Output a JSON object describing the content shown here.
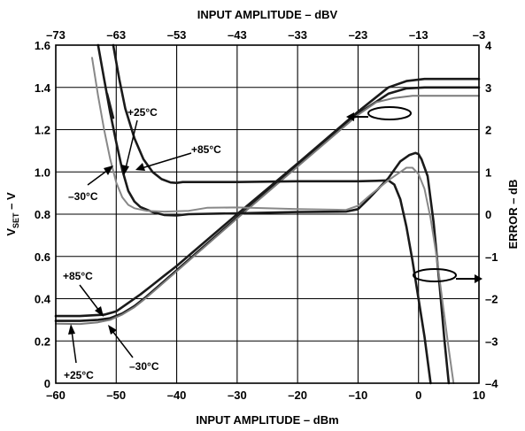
{
  "chart_data": {
    "type": "line",
    "axes": {
      "x_bottom": {
        "label": "INPUT AMPLITUDE – dBm",
        "range": [
          -60,
          10
        ],
        "ticks": [
          -60,
          -50,
          -40,
          -30,
          -20,
          -10,
          0,
          10
        ]
      },
      "x_top": {
        "label": "INPUT AMPLITUDE – dBV",
        "range": [
          -73,
          -3
        ],
        "ticks": [
          -73,
          -63,
          -53,
          -43,
          -33,
          -23,
          -13,
          -3
        ]
      },
      "y_left": {
        "label_main": "V",
        "label_sub": "SET",
        "label_tail": " – V",
        "range": [
          0,
          1.6
        ],
        "ticks": [
          0,
          0.2,
          0.4,
          0.6,
          0.8,
          1.0,
          1.2,
          1.4,
          1.6
        ],
        "tick_labels": [
          "0",
          "0.2",
          "0.4",
          "0.6",
          "0.8",
          "1.0",
          "1.2",
          "1.4",
          "1.6"
        ]
      },
      "y_right": {
        "label": "ERROR – dB",
        "range": [
          -4,
          4
        ],
        "ticks": [
          -4,
          -3,
          -2,
          -1,
          0,
          1,
          2,
          3,
          4
        ],
        "tick_labels": [
          "–4",
          "–3",
          "–2",
          "–1",
          "0",
          "1",
          "2",
          "3",
          "4"
        ]
      }
    },
    "grid": true,
    "series": [
      {
        "axis": "left",
        "color": "#1a1a1a",
        "width": 2.6,
        "points": [
          [
            -60,
            0.318
          ],
          [
            -56,
            0.318
          ],
          [
            -52,
            0.324
          ],
          [
            -50,
            0.34
          ],
          [
            -48,
            0.38
          ],
          [
            -46,
            0.42
          ],
          [
            -44,
            0.465
          ],
          [
            -42,
            0.51
          ],
          [
            -40,
            0.555
          ],
          [
            -30,
            0.8
          ],
          [
            -20,
            1.04
          ],
          [
            -10,
            1.285
          ],
          [
            -5,
            1.4
          ],
          [
            -2,
            1.43
          ],
          [
            1,
            1.44
          ],
          [
            5,
            1.44
          ],
          [
            10,
            1.44
          ]
        ]
      },
      {
        "axis": "left",
        "color": "#1a1a1a",
        "width": 2.6,
        "points": [
          [
            -60,
            0.295
          ],
          [
            -56,
            0.295
          ],
          [
            -53,
            0.3
          ],
          [
            -51,
            0.308
          ],
          [
            -49,
            0.33
          ],
          [
            -47,
            0.365
          ],
          [
            -45,
            0.41
          ],
          [
            -43,
            0.46
          ],
          [
            -40,
            0.535
          ],
          [
            -30,
            0.785
          ],
          [
            -20,
            1.03
          ],
          [
            -10,
            1.275
          ],
          [
            -5,
            1.37
          ],
          [
            -2,
            1.395
          ],
          [
            1,
            1.4
          ],
          [
            5,
            1.4
          ],
          [
            10,
            1.4
          ]
        ]
      },
      {
        "axis": "left",
        "color": "#7a7a7a",
        "width": 2.0,
        "points": [
          [
            -60,
            0.282
          ],
          [
            -56,
            0.28
          ],
          [
            -53,
            0.288
          ],
          [
            -51,
            0.3
          ],
          [
            -49,
            0.325
          ],
          [
            -47,
            0.36
          ],
          [
            -45,
            0.405
          ],
          [
            -43,
            0.455
          ],
          [
            -40,
            0.53
          ],
          [
            -30,
            0.78
          ],
          [
            -20,
            1.025
          ],
          [
            -10,
            1.27
          ],
          [
            -7,
            1.33
          ],
          [
            -4,
            1.35
          ],
          [
            -1,
            1.36
          ],
          [
            5,
            1.36
          ],
          [
            10,
            1.36
          ]
        ]
      },
      {
        "axis": "right",
        "color": "#1a1a1a",
        "width": 2.6,
        "points": [
          [
            -50.5,
            4.0
          ],
          [
            -49.5,
            3.2
          ],
          [
            -48.5,
            2.5
          ],
          [
            -47,
            1.8
          ],
          [
            -45.5,
            1.3
          ],
          [
            -44,
            1.0
          ],
          [
            -42.5,
            0.83
          ],
          [
            -41,
            0.75
          ],
          [
            -40,
            0.74
          ],
          [
            -39,
            0.76
          ],
          [
            -30,
            0.76
          ],
          [
            -20,
            0.78
          ],
          [
            -10,
            0.78
          ],
          [
            -7,
            0.79
          ],
          [
            -5,
            0.8
          ],
          [
            -4,
            0.7
          ],
          [
            -3,
            0.35
          ],
          [
            -2,
            -0.3
          ],
          [
            -1,
            -1.1
          ],
          [
            0,
            -2.0
          ],
          [
            1,
            -2.9
          ],
          [
            2,
            -4.0
          ]
        ]
      },
      {
        "axis": "right",
        "color": "#1a1a1a",
        "width": 2.6,
        "points": [
          [
            -53,
            4.0
          ],
          [
            -52,
            3.2
          ],
          [
            -51,
            2.4
          ],
          [
            -50,
            1.7
          ],
          [
            -49,
            1.05
          ],
          [
            -48,
            0.55
          ],
          [
            -47,
            0.3
          ],
          [
            -46,
            0.17
          ],
          [
            -44,
            0.05
          ],
          [
            -42,
            -0.02
          ],
          [
            -40,
            -0.03
          ],
          [
            -38,
            0.0
          ],
          [
            -30,
            0.02
          ],
          [
            -20,
            0.05
          ],
          [
            -12,
            0.06
          ],
          [
            -10,
            0.12
          ],
          [
            -8,
            0.4
          ],
          [
            -5,
            0.85
          ],
          [
            -3,
            1.25
          ],
          [
            -1.5,
            1.4
          ],
          [
            -0.5,
            1.45
          ],
          [
            0,
            1.42
          ],
          [
            0.5,
            1.3
          ],
          [
            1.5,
            0.9
          ],
          [
            2.5,
            -0.2
          ],
          [
            3.5,
            -1.7
          ],
          [
            4.3,
            -3.0
          ],
          [
            5,
            -4.0
          ]
        ]
      },
      {
        "axis": "right",
        "color": "#888888",
        "width": 2.0,
        "points": [
          [
            -54,
            3.7
          ],
          [
            -53,
            2.8
          ],
          [
            -52,
            2.0
          ],
          [
            -51,
            1.3
          ],
          [
            -50,
            0.75
          ],
          [
            -49,
            0.4
          ],
          [
            -48,
            0.22
          ],
          [
            -47,
            0.14
          ],
          [
            -45,
            0.08
          ],
          [
            -42,
            0.06
          ],
          [
            -38,
            0.08
          ],
          [
            -35,
            0.15
          ],
          [
            -30,
            0.16
          ],
          [
            -20,
            0.12
          ],
          [
            -12,
            0.1
          ],
          [
            -10,
            0.2
          ],
          [
            -8,
            0.45
          ],
          [
            -5,
            0.8
          ],
          [
            -3,
            1.0
          ],
          [
            -2,
            1.1
          ],
          [
            -1,
            1.1
          ],
          [
            0,
            0.95
          ],
          [
            1,
            0.6
          ],
          [
            2,
            -0.1
          ],
          [
            3,
            -1.0
          ],
          [
            4,
            -2.1
          ],
          [
            5,
            -3.2
          ],
          [
            5.8,
            -4.0
          ]
        ]
      },
      {
        "axis": "right",
        "color": "#1a1a1a",
        "width": 2.6,
        "points": [
          [
            -50.5,
            2.28
          ],
          [
            -51.5,
            2.85
          ]
        ]
      }
    ],
    "annotations": [
      "+25°C",
      "+85°C",
      "–30°C",
      "+85°C",
      "+25°C",
      "–30°C"
    ]
  }
}
